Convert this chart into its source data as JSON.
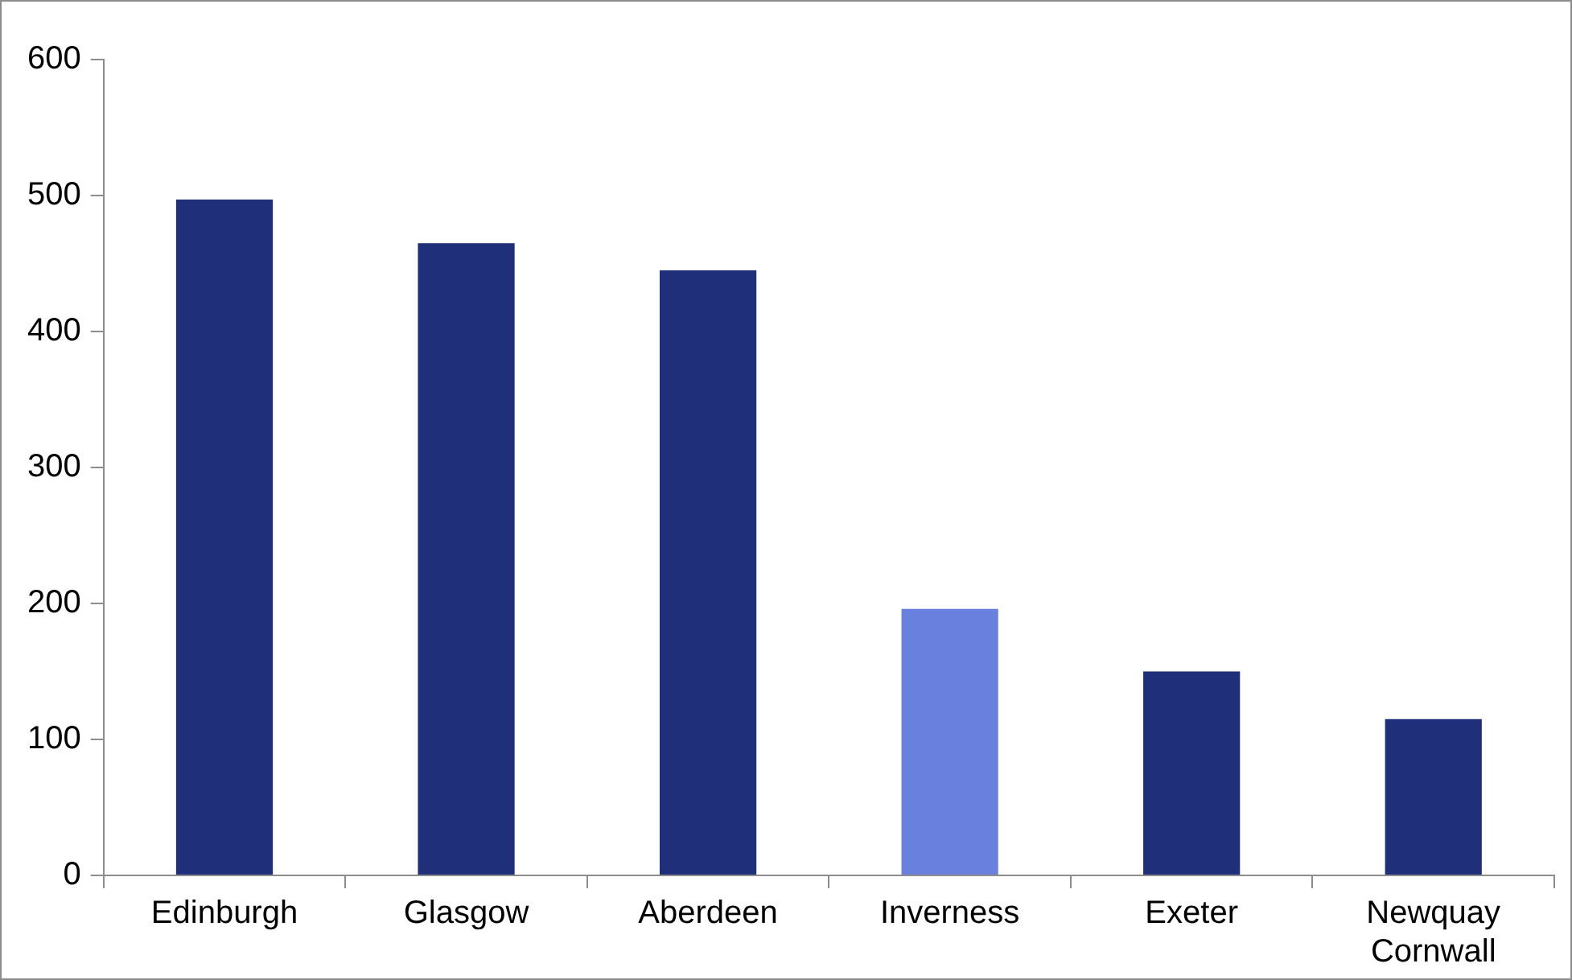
{
  "chart_data": {
    "type": "bar",
    "categories": [
      "Edinburgh",
      "Glasgow",
      "Aberdeen",
      "Inverness",
      "Exeter",
      "Newquay Cornwall"
    ],
    "values": [
      497,
      465,
      445,
      196,
      150,
      115
    ],
    "colors": [
      "#1f2f7a",
      "#1f2f7a",
      "#1f2f7a",
      "#6a80de",
      "#1f2f7a",
      "#1f2f7a"
    ],
    "ylim": [
      0,
      600
    ],
    "yticks": [
      0,
      100,
      200,
      300,
      400,
      500,
      600
    ],
    "grid": false,
    "legend": false
  }
}
